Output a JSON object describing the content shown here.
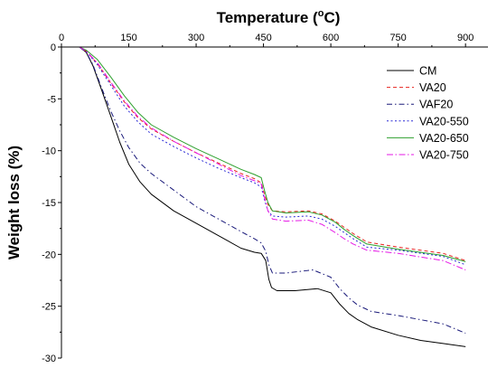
{
  "chart_data": {
    "type": "line",
    "xlabel": "Temperature (",
    "xlabel_sup": "o",
    "xlabel_unit": "C)",
    "ylabel": "Weight loss (%)",
    "xlim": [
      0,
      950
    ],
    "ylim": [
      -30,
      0
    ],
    "xticks": [
      0,
      150,
      300,
      450,
      600,
      750,
      900
    ],
    "yticks": [
      0,
      -5,
      -10,
      -15,
      -20,
      -25,
      -30
    ],
    "x_tick_labels": [
      "0",
      "150",
      "300",
      "450",
      "600",
      "750",
      "900"
    ],
    "y_tick_labels": [
      "0",
      "-5",
      "-10",
      "-15",
      "-20",
      "-25",
      "-30"
    ],
    "legend_position": "top-right",
    "series": [
      {
        "name": "CM",
        "color": "#000000",
        "dash": "",
        "points": [
          [
            40,
            0
          ],
          [
            55,
            -0.5
          ],
          [
            70,
            -1.8
          ],
          [
            90,
            -4.2
          ],
          [
            110,
            -6.7
          ],
          [
            130,
            -9.2
          ],
          [
            150,
            -11.3
          ],
          [
            175,
            -13.0
          ],
          [
            200,
            -14.2
          ],
          [
            250,
            -15.8
          ],
          [
            300,
            -17.0
          ],
          [
            350,
            -18.2
          ],
          [
            400,
            -19.4
          ],
          [
            430,
            -19.8
          ],
          [
            445,
            -19.9
          ],
          [
            455,
            -20.6
          ],
          [
            462,
            -22.4
          ],
          [
            468,
            -23.2
          ],
          [
            480,
            -23.5
          ],
          [
            520,
            -23.5
          ],
          [
            570,
            -23.3
          ],
          [
            600,
            -23.7
          ],
          [
            620,
            -24.8
          ],
          [
            640,
            -25.7
          ],
          [
            660,
            -26.3
          ],
          [
            690,
            -27.0
          ],
          [
            750,
            -27.8
          ],
          [
            800,
            -28.3
          ],
          [
            850,
            -28.6
          ],
          [
            900,
            -28.9
          ]
        ]
      },
      {
        "name": "VA20",
        "color": "#e8231f",
        "dash": "4,3",
        "points": [
          [
            40,
            0
          ],
          [
            55,
            -0.4
          ],
          [
            80,
            -1.6
          ],
          [
            110,
            -3.5
          ],
          [
            140,
            -5.3
          ],
          [
            170,
            -6.8
          ],
          [
            200,
            -7.9
          ],
          [
            250,
            -9.1
          ],
          [
            300,
            -10.2
          ],
          [
            350,
            -11.2
          ],
          [
            400,
            -12.2
          ],
          [
            430,
            -12.7
          ],
          [
            445,
            -13.1
          ],
          [
            452,
            -14.2
          ],
          [
            460,
            -15.2
          ],
          [
            470,
            -15.8
          ],
          [
            500,
            -15.9
          ],
          [
            550,
            -15.8
          ],
          [
            580,
            -16.1
          ],
          [
            610,
            -16.8
          ],
          [
            630,
            -17.4
          ],
          [
            650,
            -18.0
          ],
          [
            680,
            -18.8
          ],
          [
            750,
            -19.3
          ],
          [
            850,
            -19.9
          ],
          [
            900,
            -20.6
          ]
        ]
      },
      {
        "name": "VAF20",
        "color": "#1a1a7a",
        "dash": "6,3,1.5,3",
        "points": [
          [
            40,
            0
          ],
          [
            55,
            -0.5
          ],
          [
            70,
            -1.7
          ],
          [
            90,
            -4.0
          ],
          [
            110,
            -6.2
          ],
          [
            130,
            -8.1
          ],
          [
            150,
            -9.7
          ],
          [
            175,
            -11.2
          ],
          [
            200,
            -12.2
          ],
          [
            250,
            -13.8
          ],
          [
            300,
            -15.4
          ],
          [
            350,
            -16.6
          ],
          [
            400,
            -17.8
          ],
          [
            430,
            -18.5
          ],
          [
            445,
            -18.9
          ],
          [
            455,
            -19.7
          ],
          [
            462,
            -21.0
          ],
          [
            470,
            -21.8
          ],
          [
            500,
            -21.8
          ],
          [
            560,
            -21.5
          ],
          [
            600,
            -22.2
          ],
          [
            620,
            -23.3
          ],
          [
            640,
            -24.2
          ],
          [
            660,
            -24.9
          ],
          [
            690,
            -25.5
          ],
          [
            750,
            -25.9
          ],
          [
            800,
            -26.3
          ],
          [
            850,
            -26.7
          ],
          [
            900,
            -27.6
          ]
        ]
      },
      {
        "name": "VA20-550",
        "color": "#2b2bd6",
        "dash": "2,2.5",
        "points": [
          [
            40,
            0
          ],
          [
            55,
            -0.4
          ],
          [
            80,
            -1.7
          ],
          [
            110,
            -3.7
          ],
          [
            140,
            -5.7
          ],
          [
            170,
            -7.2
          ],
          [
            200,
            -8.4
          ],
          [
            250,
            -9.6
          ],
          [
            300,
            -10.7
          ],
          [
            350,
            -11.7
          ],
          [
            400,
            -12.6
          ],
          [
            430,
            -13.1
          ],
          [
            445,
            -13.5
          ],
          [
            452,
            -14.7
          ],
          [
            460,
            -15.8
          ],
          [
            470,
            -16.3
          ],
          [
            500,
            -16.4
          ],
          [
            550,
            -16.3
          ],
          [
            580,
            -16.6
          ],
          [
            610,
            -17.3
          ],
          [
            630,
            -17.9
          ],
          [
            650,
            -18.5
          ],
          [
            680,
            -19.3
          ],
          [
            750,
            -19.6
          ],
          [
            850,
            -20.2
          ],
          [
            900,
            -21.0
          ]
        ]
      },
      {
        "name": "VA20-650",
        "color": "#2ea02e",
        "dash": "",
        "points": [
          [
            40,
            0
          ],
          [
            55,
            -0.3
          ],
          [
            80,
            -1.2
          ],
          [
            110,
            -2.9
          ],
          [
            140,
            -4.7
          ],
          [
            170,
            -6.3
          ],
          [
            200,
            -7.5
          ],
          [
            250,
            -8.7
          ],
          [
            300,
            -9.8
          ],
          [
            350,
            -10.8
          ],
          [
            400,
            -11.8
          ],
          [
            430,
            -12.3
          ],
          [
            445,
            -12.6
          ],
          [
            452,
            -13.8
          ],
          [
            460,
            -15.0
          ],
          [
            470,
            -15.8
          ],
          [
            500,
            -16.0
          ],
          [
            550,
            -15.9
          ],
          [
            580,
            -16.2
          ],
          [
            610,
            -16.9
          ],
          [
            630,
            -17.6
          ],
          [
            650,
            -18.2
          ],
          [
            680,
            -19.0
          ],
          [
            750,
            -19.5
          ],
          [
            850,
            -20.1
          ],
          [
            900,
            -20.7
          ]
        ]
      },
      {
        "name": "VA20-750",
        "color": "#e619e6",
        "dash": "7,2.5,1.5,2.5",
        "points": [
          [
            40,
            0
          ],
          [
            55,
            -0.4
          ],
          [
            80,
            -1.5
          ],
          [
            110,
            -3.4
          ],
          [
            140,
            -5.2
          ],
          [
            170,
            -6.7
          ],
          [
            200,
            -7.8
          ],
          [
            250,
            -9.1
          ],
          [
            300,
            -10.2
          ],
          [
            350,
            -11.3
          ],
          [
            400,
            -12.4
          ],
          [
            430,
            -12.9
          ],
          [
            445,
            -13.2
          ],
          [
            452,
            -14.5
          ],
          [
            460,
            -15.8
          ],
          [
            470,
            -16.6
          ],
          [
            500,
            -16.8
          ],
          [
            550,
            -16.7
          ],
          [
            580,
            -17.1
          ],
          [
            610,
            -17.9
          ],
          [
            630,
            -18.5
          ],
          [
            650,
            -19.0
          ],
          [
            680,
            -19.6
          ],
          [
            750,
            -19.9
          ],
          [
            850,
            -20.6
          ],
          [
            900,
            -21.5
          ]
        ]
      }
    ]
  }
}
